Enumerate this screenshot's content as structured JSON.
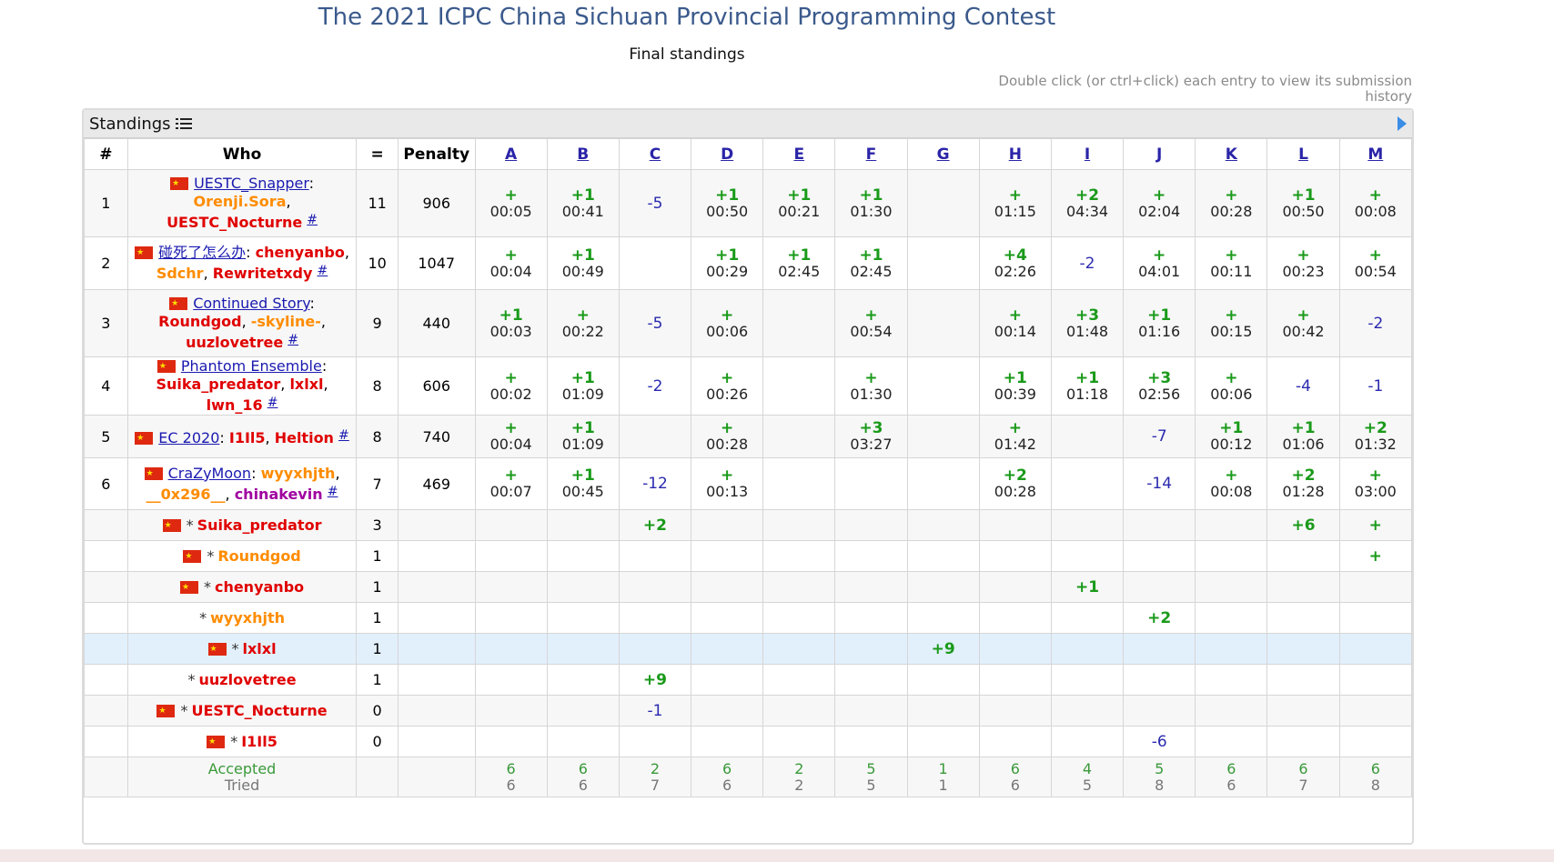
{
  "title": "The 2021 ICPC China Sichuan Provincial Programming Contest",
  "subtitle": "Final standings",
  "hint": "Double click (or ctrl+click) each entry to view its submission history",
  "panel": {
    "label": "Standings",
    "list_icon": "list-icon",
    "expand_icon": "play-icon"
  },
  "headers": {
    "rank": "#",
    "who": "Who",
    "solved": "=",
    "penalty": "Penalty"
  },
  "problems": [
    "A",
    "B",
    "C",
    "D",
    "E",
    "F",
    "G",
    "H",
    "I",
    "J",
    "K",
    "L",
    "M"
  ],
  "colors": {
    "title": "#3b5a8c",
    "accepted": "#1a9a1a",
    "rejected": "#2a2ab0",
    "highlight_row": "#e2f0fc"
  },
  "rows": [
    {
      "rank": "1",
      "team": "UESTC_Snapper",
      "members": [
        {
          "name": "Orenji.Sora",
          "color": "orange"
        },
        {
          "name": "UESTC_Nocturne",
          "color": "red"
        }
      ],
      "solved": "11",
      "penalty": "906",
      "cells": [
        {
          "r": "+",
          "t": "00:05"
        },
        {
          "r": "+1",
          "t": "00:41"
        },
        {
          "f": "-5"
        },
        {
          "r": "+1",
          "t": "00:50"
        },
        {
          "r": "+1",
          "t": "00:21"
        },
        {
          "r": "+1",
          "t": "01:30"
        },
        {},
        {
          "r": "+",
          "t": "01:15"
        },
        {
          "r": "+2",
          "t": "04:34"
        },
        {
          "r": "+",
          "t": "02:04"
        },
        {
          "r": "+",
          "t": "00:28"
        },
        {
          "r": "+1",
          "t": "00:50"
        },
        {
          "r": "+",
          "t": "00:08"
        }
      ]
    },
    {
      "rank": "2",
      "team": "碰死了怎么办",
      "members": [
        {
          "name": "chenyanbo",
          "color": "red"
        },
        {
          "name": "Sdchr",
          "color": "orange"
        },
        {
          "name": "Rewritetxdy",
          "color": "red"
        }
      ],
      "solved": "10",
      "penalty": "1047",
      "cells": [
        {
          "r": "+",
          "t": "00:04"
        },
        {
          "r": "+1",
          "t": "00:49"
        },
        {},
        {
          "r": "+1",
          "t": "00:29"
        },
        {
          "r": "+1",
          "t": "02:45"
        },
        {
          "r": "+1",
          "t": "02:45"
        },
        {},
        {
          "r": "+4",
          "t": "02:26"
        },
        {
          "f": "-2"
        },
        {
          "r": "+",
          "t": "04:01"
        },
        {
          "r": "+",
          "t": "00:11"
        },
        {
          "r": "+",
          "t": "00:23"
        },
        {
          "r": "+",
          "t": "00:54"
        }
      ]
    },
    {
      "rank": "3",
      "team": "Continued Story",
      "members": [
        {
          "name": "Roundgod",
          "color": "red"
        },
        {
          "name": "-skyline-",
          "color": "orange"
        },
        {
          "name": "uuzlovetree",
          "color": "red"
        }
      ],
      "solved": "9",
      "penalty": "440",
      "cells": [
        {
          "r": "+1",
          "t": "00:03"
        },
        {
          "r": "+",
          "t": "00:22"
        },
        {
          "f": "-5"
        },
        {
          "r": "+",
          "t": "00:06"
        },
        {},
        {
          "r": "+",
          "t": "00:54"
        },
        {},
        {
          "r": "+",
          "t": "00:14"
        },
        {
          "r": "+3",
          "t": "01:48"
        },
        {
          "r": "+1",
          "t": "01:16"
        },
        {
          "r": "+",
          "t": "00:15"
        },
        {
          "r": "+",
          "t": "00:42"
        },
        {
          "f": "-2"
        }
      ]
    },
    {
      "rank": "4",
      "team": "Phantom Ensemble",
      "members": [
        {
          "name": "Suika_predator",
          "color": "red"
        },
        {
          "name": "lxlxl",
          "color": "red"
        },
        {
          "name": "lwn_16",
          "color": "red"
        }
      ],
      "solved": "8",
      "penalty": "606",
      "cells": [
        {
          "r": "+",
          "t": "00:02"
        },
        {
          "r": "+1",
          "t": "01:09"
        },
        {
          "f": "-2"
        },
        {
          "r": "+",
          "t": "00:26"
        },
        {},
        {
          "r": "+",
          "t": "01:30"
        },
        {},
        {
          "r": "+1",
          "t": "00:39"
        },
        {
          "r": "+1",
          "t": "01:18"
        },
        {
          "r": "+3",
          "t": "02:56"
        },
        {
          "r": "+",
          "t": "00:06"
        },
        {
          "f": "-4"
        },
        {
          "f": "-1"
        }
      ]
    },
    {
      "rank": "5",
      "team": "EC 2020",
      "members": [
        {
          "name": "I1Il5",
          "color": "red"
        },
        {
          "name": "Heltion",
          "color": "red"
        }
      ],
      "solved": "8",
      "penalty": "740",
      "cells": [
        {
          "r": "+",
          "t": "00:04"
        },
        {
          "r": "+1",
          "t": "01:09"
        },
        {},
        {
          "r": "+",
          "t": "00:28"
        },
        {},
        {
          "r": "+3",
          "t": "03:27"
        },
        {},
        {
          "r": "+",
          "t": "01:42"
        },
        {},
        {
          "f": "-7"
        },
        {
          "r": "+1",
          "t": "00:12"
        },
        {
          "r": "+1",
          "t": "01:06"
        },
        {
          "r": "+2",
          "t": "01:32"
        }
      ]
    },
    {
      "rank": "6",
      "team": "CraZyMoon",
      "members": [
        {
          "name": "wyyxhjth",
          "color": "orange"
        },
        {
          "name": "__0x296__",
          "color": "orange"
        },
        {
          "name": "chinakevin",
          "color": "purple"
        }
      ],
      "solved": "7",
      "penalty": "469",
      "cells": [
        {
          "r": "+",
          "t": "00:07"
        },
        {
          "r": "+1",
          "t": "00:45"
        },
        {
          "f": "-12"
        },
        {
          "r": "+",
          "t": "00:13"
        },
        {},
        {},
        {},
        {
          "r": "+2",
          "t": "00:28"
        },
        {},
        {
          "f": "-14"
        },
        {
          "r": "+",
          "t": "00:08"
        },
        {
          "r": "+2",
          "t": "01:28"
        },
        {
          "r": "+",
          "t": "03:00"
        }
      ]
    }
  ],
  "individuals": [
    {
      "star": "*",
      "name": "Suika_predator",
      "color": "red",
      "flag": true,
      "solved": "3",
      "cells": [
        {},
        {},
        {
          "r": "+2"
        },
        {},
        {},
        {},
        {},
        {},
        {},
        {},
        {},
        {
          "r": "+6"
        },
        {
          "r": "+"
        }
      ]
    },
    {
      "star": "*",
      "name": "Roundgod",
      "color": "orange",
      "flag": true,
      "solved": "1",
      "cells": [
        {},
        {},
        {},
        {},
        {},
        {},
        {},
        {},
        {},
        {},
        {},
        {},
        {
          "r": "+"
        }
      ]
    },
    {
      "star": "*",
      "name": "chenyanbo",
      "color": "red",
      "flag": true,
      "solved": "1",
      "cells": [
        {},
        {},
        {},
        {},
        {},
        {},
        {},
        {},
        {
          "r": "+1"
        },
        {},
        {},
        {},
        {}
      ]
    },
    {
      "star": "*",
      "name": "wyyxhjth",
      "color": "orange",
      "flag": false,
      "solved": "1",
      "cells": [
        {},
        {},
        {},
        {},
        {},
        {},
        {},
        {},
        {},
        {
          "r": "+2"
        },
        {},
        {},
        {}
      ]
    },
    {
      "star": "*",
      "name": "lxlxl",
      "color": "red",
      "flag": true,
      "solved": "1",
      "highlight": true,
      "cells": [
        {},
        {},
        {},
        {},
        {},
        {},
        {
          "r": "+9"
        },
        {},
        {},
        {},
        {},
        {},
        {}
      ]
    },
    {
      "star": "*",
      "name": "uuzlovetree",
      "color": "red",
      "flag": false,
      "solved": "1",
      "cells": [
        {},
        {},
        {
          "r": "+9"
        },
        {},
        {},
        {},
        {},
        {},
        {},
        {},
        {},
        {},
        {}
      ]
    },
    {
      "star": "*",
      "name": "UESTC_Nocturne",
      "color": "red",
      "flag": true,
      "solved": "0",
      "cells": [
        {},
        {},
        {
          "f": "-1"
        },
        {},
        {},
        {},
        {},
        {},
        {},
        {},
        {},
        {},
        {}
      ]
    },
    {
      "star": "*",
      "name": "I1Il5",
      "color": "red",
      "flag": true,
      "solved": "0",
      "cells": [
        {},
        {},
        {},
        {},
        {},
        {},
        {},
        {},
        {},
        {
          "f": "-6"
        },
        {},
        {},
        {}
      ]
    }
  ],
  "stats": {
    "accepted_label": "Accepted",
    "tried_label": "Tried",
    "accepted": [
      "6",
      "6",
      "2",
      "6",
      "2",
      "5",
      "1",
      "6",
      "4",
      "5",
      "6",
      "6",
      "6"
    ],
    "tried": [
      "6",
      "6",
      "7",
      "6",
      "2",
      "5",
      "1",
      "6",
      "5",
      "8",
      "6",
      "7",
      "8"
    ]
  },
  "hash_symbol": "#"
}
